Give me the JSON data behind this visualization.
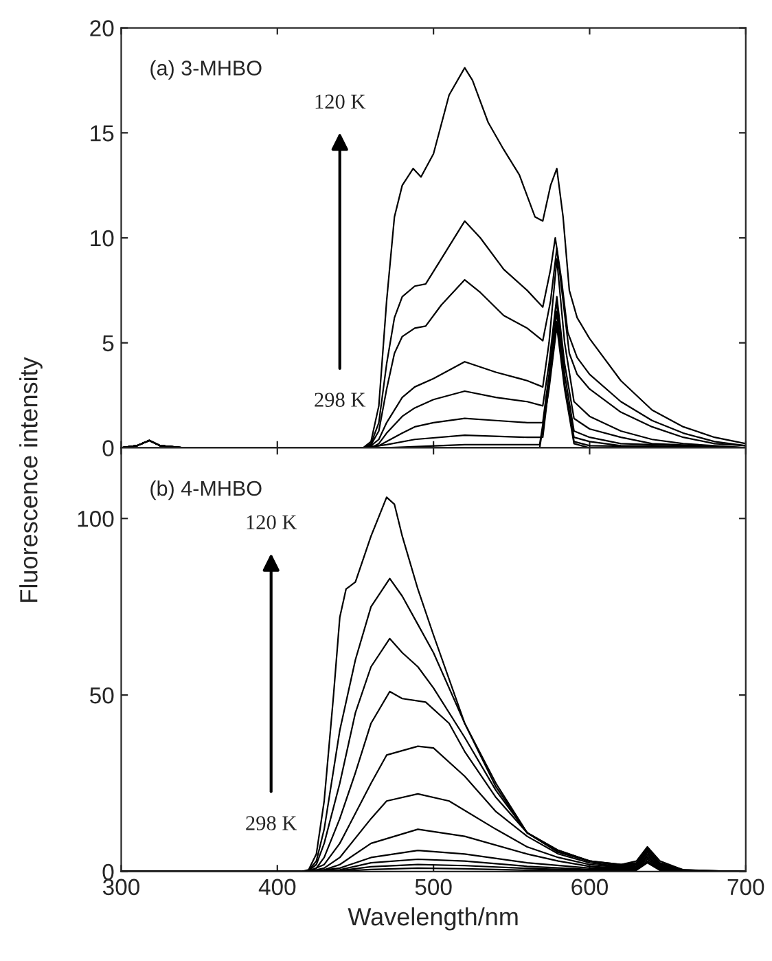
{
  "chart_data": [
    {
      "type": "line",
      "ylabel": "Fluorescence intensity",
      "annotations": [
        "(a) 3-MHBO",
        "120 K",
        "298 K"
      ],
      "xlim": [
        300,
        700
      ],
      "xticks": [
        300,
        400,
        500,
        600,
        700
      ],
      "ylim": [
        0,
        20
      ],
      "yticks": [
        0,
        5,
        10,
        15,
        20
      ],
      "tick_labels": "y",
      "legend": false,
      "grid": false,
      "marker": "none",
      "line_style": "solid",
      "series": [
        {
          "color": "#000000",
          "x": [
            300,
            310,
            318,
            325,
            340,
            455,
            460,
            465,
            470,
            475,
            480,
            487,
            492,
            500,
            510,
            520,
            525,
            535,
            545,
            555,
            565,
            570,
            575,
            579,
            583,
            587,
            592,
            600,
            620,
            640,
            660,
            680,
            700
          ],
          "values": [
            0,
            0.1,
            0.35,
            0.1,
            0,
            0,
            0.3,
            2,
            7,
            11,
            12.5,
            13.3,
            12.9,
            14,
            16.8,
            18.1,
            17.5,
            15.5,
            14.2,
            13,
            11,
            10.8,
            12.5,
            13.3,
            11,
            7.5,
            6.2,
            5.2,
            3.2,
            1.8,
            1,
            0.5,
            0.2
          ]
        },
        {
          "color": "#000000",
          "x": [
            300,
            310,
            318,
            325,
            340,
            455,
            460,
            465,
            470,
            475,
            480,
            488,
            495,
            505,
            520,
            530,
            545,
            560,
            570,
            575,
            578,
            582,
            586,
            592,
            600,
            620,
            640,
            660,
            680,
            700
          ],
          "values": [
            0,
            0.1,
            0.35,
            0.1,
            0,
            0,
            0.2,
            1.2,
            4,
            6.2,
            7.2,
            7.7,
            7.8,
            9,
            10.8,
            10,
            8.5,
            7.5,
            6.7,
            8.5,
            10,
            8,
            5.5,
            4.3,
            3.5,
            2.2,
            1.3,
            0.7,
            0.3,
            0.1
          ]
        },
        {
          "color": "#000000",
          "x": [
            300,
            310,
            318,
            325,
            340,
            455,
            460,
            465,
            470,
            475,
            480,
            488,
            495,
            505,
            520,
            530,
            545,
            560,
            570,
            575,
            579,
            583,
            587,
            592,
            600,
            620,
            640,
            660,
            680,
            700
          ],
          "values": [
            0,
            0.1,
            0.35,
            0.1,
            0,
            0,
            0.15,
            0.8,
            2.8,
            4.5,
            5.3,
            5.7,
            5.8,
            6.8,
            8,
            7.4,
            6.3,
            5.7,
            5.1,
            7,
            9.5,
            7,
            4.5,
            3.5,
            2.8,
            1.7,
            1,
            0.5,
            0.2,
            0.1
          ]
        },
        {
          "color": "#000000",
          "x": [
            300,
            310,
            318,
            325,
            340,
            455,
            460,
            465,
            470,
            480,
            488,
            500,
            520,
            540,
            560,
            570,
            574,
            579,
            584,
            590,
            600,
            620,
            640,
            660,
            700
          ],
          "values": [
            0,
            0.1,
            0.35,
            0.1,
            0,
            0,
            0.1,
            0.4,
            1.2,
            2.4,
            2.9,
            3.3,
            4.1,
            3.6,
            3.2,
            2.9,
            5,
            9,
            5,
            2.2,
            1.5,
            0.8,
            0.4,
            0.2,
            0
          ]
        },
        {
          "color": "#000000",
          "x": [
            300,
            310,
            318,
            325,
            340,
            455,
            460,
            465,
            470,
            480,
            488,
            500,
            520,
            540,
            560,
            570,
            574,
            579,
            584,
            590,
            600,
            620,
            640,
            700
          ],
          "values": [
            0,
            0.1,
            0.35,
            0.1,
            0,
            0,
            0,
            0.2,
            0.7,
            1.5,
            1.9,
            2.3,
            2.7,
            2.4,
            2.2,
            2,
            4,
            7.2,
            4,
            1.4,
            0.9,
            0.5,
            0.2,
            0
          ]
        },
        {
          "color": "#000000",
          "x": [
            300,
            310,
            318,
            325,
            340,
            455,
            465,
            470,
            480,
            488,
            500,
            520,
            540,
            560,
            570,
            574,
            579,
            584,
            590,
            600,
            620,
            700
          ],
          "values": [
            0,
            0.1,
            0.35,
            0.1,
            0,
            0,
            0.1,
            0.3,
            0.7,
            1,
            1.2,
            1.4,
            1.3,
            1.2,
            1.2,
            3.5,
            7,
            3.5,
            0.8,
            0.5,
            0.2,
            0
          ]
        },
        {
          "color": "#000000",
          "x": [
            300,
            310,
            318,
            325,
            340,
            455,
            470,
            488,
            520,
            560,
            570,
            574,
            579,
            584,
            590,
            600,
            620,
            700
          ],
          "values": [
            0,
            0.1,
            0.35,
            0.1,
            0,
            0,
            0.15,
            0.4,
            0.6,
            0.5,
            0.5,
            3,
            6.5,
            3,
            0.5,
            0.3,
            0.1,
            0
          ]
        },
        {
          "color": "#000000",
          "x": [
            300,
            310,
            318,
            325,
            340,
            455,
            470,
            520,
            568,
            574,
            579,
            584,
            590,
            600,
            700
          ],
          "values": [
            0,
            0.1,
            0.35,
            0.1,
            0,
            0,
            0,
            0.15,
            0.15,
            3,
            6,
            3,
            0.3,
            0.1,
            0
          ]
        },
        {
          "color": "#000000",
          "x": [
            300,
            310,
            318,
            325,
            340,
            455,
            568,
            574,
            579,
            584,
            590,
            600,
            700
          ],
          "values": [
            0,
            0.1,
            0.35,
            0.1,
            0,
            0,
            0,
            2.8,
            5.8,
            2.8,
            0.2,
            0,
            0
          ]
        }
      ]
    },
    {
      "type": "line",
      "xlabel": "Wavelength/nm",
      "annotations": [
        "(b) 4-MHBO",
        "120 K",
        "298 K"
      ],
      "xlim": [
        300,
        700
      ],
      "xticks": [
        300,
        400,
        500,
        600,
        700
      ],
      "ylim": [
        0,
        120
      ],
      "yticks": [
        0,
        50,
        100
      ],
      "legend": false,
      "grid": false,
      "marker": "none",
      "line_style": "solid",
      "series": [
        {
          "color": "#000000",
          "x": [
            300,
            415,
            420,
            425,
            430,
            436,
            440,
            444,
            450,
            460,
            470,
            475,
            480,
            490,
            500,
            520,
            540,
            560,
            580,
            600,
            620,
            630,
            637,
            645,
            660,
            680,
            700
          ],
          "values": [
            0,
            0,
            0.5,
            5,
            20,
            50,
            72,
            80,
            82,
            95,
            106,
            104,
            95,
            80,
            67,
            42,
            25,
            11,
            5.5,
            3,
            2,
            3,
            7,
            3,
            0.5,
            0.1,
            0
          ]
        },
        {
          "color": "#000000",
          "x": [
            300,
            415,
            420,
            425,
            430,
            440,
            450,
            460,
            472,
            480,
            490,
            500,
            520,
            540,
            560,
            580,
            600,
            620,
            630,
            637,
            645,
            660,
            700
          ],
          "values": [
            0,
            0,
            0.3,
            3,
            12,
            40,
            60,
            75,
            83,
            78,
            70,
            62,
            42,
            24,
            11,
            6,
            3,
            2,
            2.5,
            6.5,
            2.5,
            0.5,
            0
          ]
        },
        {
          "color": "#000000",
          "x": [
            300,
            415,
            420,
            425,
            430,
            440,
            450,
            460,
            472,
            480,
            490,
            500,
            520,
            540,
            560,
            580,
            600,
            620,
            630,
            637,
            645,
            660,
            700
          ],
          "values": [
            0,
            0,
            0.2,
            2,
            8,
            25,
            45,
            58,
            66,
            62,
            58,
            52,
            38,
            23,
            11,
            6,
            3,
            1.8,
            2.2,
            6,
            2.2,
            0.4,
            0
          ]
        },
        {
          "color": "#000000",
          "x": [
            300,
            415,
            420,
            425,
            430,
            440,
            450,
            460,
            472,
            480,
            495,
            510,
            520,
            540,
            560,
            580,
            600,
            620,
            630,
            637,
            645,
            660,
            700
          ],
          "values": [
            0,
            0,
            0.1,
            1,
            4,
            15,
            28,
            42,
            51,
            49,
            48,
            42,
            34,
            21,
            11,
            5.5,
            3,
            1.6,
            2,
            5.5,
            2,
            0.4,
            0
          ]
        },
        {
          "color": "#000000",
          "x": [
            300,
            415,
            420,
            430,
            440,
            460,
            470,
            490,
            500,
            520,
            540,
            560,
            580,
            600,
            620,
            630,
            637,
            645,
            660,
            700
          ],
          "values": [
            0,
            0,
            0.1,
            2,
            8,
            25,
            33,
            35.5,
            35,
            27,
            17,
            10,
            5,
            2.5,
            1.4,
            1.8,
            5,
            1.8,
            0.3,
            0
          ]
        },
        {
          "color": "#000000",
          "x": [
            300,
            415,
            420,
            430,
            440,
            460,
            470,
            490,
            510,
            540,
            560,
            580,
            600,
            620,
            630,
            637,
            645,
            660,
            700
          ],
          "values": [
            0,
            0,
            0,
            1,
            4,
            15,
            20,
            22,
            20,
            12,
            7,
            4,
            2,
            1.2,
            1.5,
            4.5,
            1.5,
            0.3,
            0
          ]
        },
        {
          "color": "#000000",
          "x": [
            300,
            415,
            420,
            430,
            440,
            460,
            490,
            520,
            560,
            580,
            600,
            620,
            630,
            637,
            645,
            660,
            700
          ],
          "values": [
            0,
            0,
            0,
            0.5,
            2,
            8,
            12,
            10,
            5,
            3,
            1.5,
            1,
            1.3,
            4,
            1.3,
            0.2,
            0
          ]
        },
        {
          "color": "#000000",
          "x": [
            300,
            415,
            420,
            440,
            460,
            490,
            520,
            560,
            600,
            630,
            637,
            645,
            660,
            700
          ],
          "values": [
            0,
            0,
            0,
            1,
            4,
            6,
            5,
            2.5,
            1,
            1,
            3.5,
            1,
            0.2,
            0
          ]
        },
        {
          "color": "#000000",
          "x": [
            300,
            415,
            420,
            440,
            460,
            490,
            520,
            560,
            600,
            630,
            637,
            645,
            660,
            700
          ],
          "values": [
            0,
            0,
            0,
            0.5,
            2.5,
            3.5,
            3,
            1.5,
            0.6,
            0.8,
            3,
            0.8,
            0.1,
            0
          ]
        },
        {
          "color": "#000000",
          "x": [
            300,
            415,
            420,
            440,
            460,
            490,
            520,
            560,
            600,
            630,
            637,
            645,
            660,
            700
          ],
          "values": [
            0,
            0,
            0,
            0.3,
            1.4,
            2,
            1.7,
            0.9,
            0.4,
            0.6,
            2.8,
            0.6,
            0.1,
            0
          ]
        },
        {
          "color": "#000000",
          "x": [
            300,
            415,
            420,
            440,
            460,
            490,
            520,
            560,
            600,
            630,
            637,
            645,
            660,
            700
          ],
          "values": [
            0,
            0,
            0,
            0.1,
            0.6,
            1,
            0.8,
            0.4,
            0.2,
            0.4,
            2.5,
            0.4,
            0,
            0
          ]
        }
      ]
    }
  ]
}
